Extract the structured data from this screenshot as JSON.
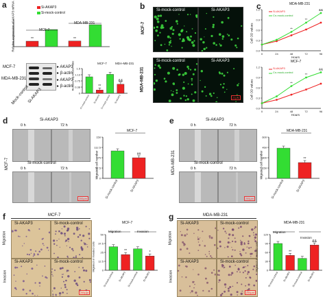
{
  "panels": {
    "a": {
      "label": "a",
      "legend": [
        "Si-AKAP3",
        "Si-mock-control"
      ],
      "ylabel_top": "Relative expression of AKAP3 mRNA",
      "groups_top": [
        "MCF-7",
        "MDA-MB-231"
      ],
      "stars": "**",
      "blot_rows": [
        "MCF-7",
        "MDA-MB-231"
      ],
      "blot_proteins": [
        "AKAP3",
        "β-actin"
      ],
      "blot_lanes": [
        "Mock-control",
        "Si-AKAP3"
      ],
      "ylabel_bottom": "Relative expression ratio",
      "groups_bottom": [
        "MCF-7",
        "MDA-MB-231"
      ],
      "bottom_xlabels": [
        "Cn-mock-control",
        "Si-AKAP3",
        "Cn-mock-control",
        "Si-AKAP3"
      ],
      "bottom_marks": [
        "**",
        "&&"
      ]
    },
    "b": {
      "label": "b",
      "col_titles": [
        "Si-mock-control",
        "Si-AKAP3"
      ],
      "row_labels": [
        "MCF-7",
        "MDA-MB-231"
      ],
      "col_titles_row2": [
        "Si-mock-control",
        "Si-AKAP3"
      ],
      "scale": "20µm"
    },
    "c": {
      "label": "c",
      "top_title": "MDA-MB-231",
      "bottom_title": "MCF-7",
      "legend": [
        "Si-AKAP3",
        "Cn-mock-control"
      ],
      "ylabel": "Cell OD values",
      "xlabel": "Hours",
      "xticks": [
        "0",
        "24",
        "48",
        "72",
        "96"
      ],
      "marks_top": [
        "**",
        "**",
        "&&"
      ],
      "marks_bottom": [
        "**",
        "**",
        "&&"
      ]
    },
    "d": {
      "label": "d",
      "times": [
        "0 h",
        "72 h"
      ],
      "top_title": "Si-AKAP3",
      "mid_title": "Si-mock-control",
      "row_label": "MCF-7",
      "scale": "200µm",
      "chart_title": "MCF-7",
      "ylabel": "Migrated cell number",
      "xlabels": [
        "Si-mock-control",
        "Si-AKAP3"
      ],
      "mark": "##"
    },
    "e": {
      "label": "e",
      "times": [
        "0 h",
        "72 h"
      ],
      "top_title": "Si-AKAP3",
      "mid_title": "Si-mock-control",
      "row_label": "MDA-MB-231",
      "scale": "200µm",
      "chart_title": "MDA-MB-231",
      "ylabel": "Migrated cell number",
      "xlabels": [
        "Si-mock-control",
        "Si-AKAP3"
      ],
      "mark": "**"
    },
    "f": {
      "label": "f",
      "header": "MCF-7",
      "col_titles": [
        "Si-AKAP3",
        "Si-mock-control"
      ],
      "row_labels": [
        "Migration",
        "Invasion"
      ],
      "scale": "200µm",
      "chart_title": "MCF-7",
      "group_titles": [
        "Migration",
        "Invasion"
      ],
      "ylabel": "Migrated or invaded cells",
      "xlabels": [
        "Si-mock-control",
        "Si-AKAP3",
        "Si-mock-control",
        "Si-AKAP3"
      ],
      "marks": [
        "**",
        "*"
      ]
    },
    "g": {
      "label": "g",
      "header": "MDA-MB-231",
      "col_titles": [
        "Si-AKAP3",
        "Si-mock-control"
      ],
      "row_labels": [
        "Migration",
        "Invasion"
      ],
      "scale": "200µm",
      "chart_title": "MDA-MB-231",
      "group_titles": [
        "Migration",
        "Invasion"
      ],
      "ylabel": "Migrated or invaded cells",
      "xlabels": [
        "Si-mock-control",
        "Si-AKAP3",
        "Si-mock-control",
        "Si-AKAP3"
      ],
      "marks": [
        "**",
        "&&"
      ]
    }
  },
  "colors": {
    "red": "#ee2222",
    "green": "#33dd33"
  },
  "chart_data": [
    {
      "id": "a-top",
      "type": "bar",
      "categories": [
        "MCF-7 Si-AKAP3",
        "MCF-7 Si-mock-control",
        "MDA-MB-231 Si-AKAP3",
        "MDA-MB-231 Si-mock-control"
      ],
      "values": [
        0.32,
        1.0,
        0.33,
        1.28
      ],
      "colors": [
        "#ee2222",
        "#33dd33",
        "#ee2222",
        "#33dd33"
      ],
      "ylim": [
        0,
        1.6
      ]
    },
    {
      "id": "a-bottom",
      "type": "bar",
      "categories": [
        "Cn-mock-control",
        "Si-AKAP3",
        "Cn-mock-control",
        "Si-AKAP3"
      ],
      "values": [
        1.0,
        0.2,
        1.15,
        0.55
      ],
      "colors": [
        "#33dd33",
        "#ee2222",
        "#33dd33",
        "#ee2222"
      ],
      "ylim": [
        0,
        1.5
      ]
    },
    {
      "id": "c-top",
      "type": "line",
      "title": "MDA-MB-231",
      "x": [
        0,
        24,
        48,
        72,
        96
      ],
      "series": [
        {
          "name": "Si-AKAP3",
          "values": [
            0.18,
            0.28,
            0.45,
            0.62,
            0.82
          ],
          "color": "#ee2222"
        },
        {
          "name": "Cn-mock-control",
          "values": [
            0.18,
            0.32,
            0.55,
            0.82,
            1.1
          ],
          "color": "#33dd33"
        }
      ],
      "ylim": [
        0,
        1.2
      ]
    },
    {
      "id": "c-bottom",
      "type": "line",
      "title": "MCF-7",
      "x": [
        0,
        24,
        48,
        72,
        96
      ],
      "series": [
        {
          "name": "Si-AKAP3",
          "values": [
            0.15,
            0.25,
            0.4,
            0.55,
            0.72
          ],
          "color": "#ee2222"
        },
        {
          "name": "Cn-mock-control",
          "values": [
            0.15,
            0.35,
            0.65,
            0.9,
            1.05
          ],
          "color": "#33dd33"
        }
      ],
      "ylim": [
        0,
        1.2
      ]
    },
    {
      "id": "d-chart",
      "type": "bar",
      "title": "MCF-7",
      "categories": [
        "Si-mock-control",
        "Si-AKAP3"
      ],
      "values": [
        100,
        75
      ],
      "colors": [
        "#33dd33",
        "#ee2222"
      ],
      "ylim": [
        0,
        150
      ]
    },
    {
      "id": "e-chart",
      "type": "bar",
      "title": "MDA-MB-231",
      "categories": [
        "Si-mock-control",
        "Si-AKAP3"
      ],
      "values": [
        440,
        230
      ],
      "colors": [
        "#33dd33",
        "#ee2222"
      ],
      "ylim": [
        0,
        600
      ]
    },
    {
      "id": "f-chart",
      "type": "bar",
      "title": "MCF-7",
      "categories": [
        "Si-mock-control",
        "Si-AKAP3",
        "Si-mock-control",
        "Si-AKAP3"
      ],
      "values": [
        33,
        22,
        30,
        20
      ],
      "colors": [
        "#33dd33",
        "#ee2222",
        "#33dd33",
        "#ee2222"
      ],
      "ylim": [
        0,
        50
      ]
    },
    {
      "id": "g-chart",
      "type": "bar",
      "title": "MDA-MB-231",
      "categories": [
        "Si-mock-control",
        "Si-AKAP3",
        "Si-mock-control",
        "Si-AKAP3"
      ],
      "values": [
        90,
        50,
        40,
        85
      ],
      "colors": [
        "#33dd33",
        "#ee2222",
        "#33dd33",
        "#ee2222"
      ],
      "ylim": [
        0,
        120
      ]
    }
  ]
}
